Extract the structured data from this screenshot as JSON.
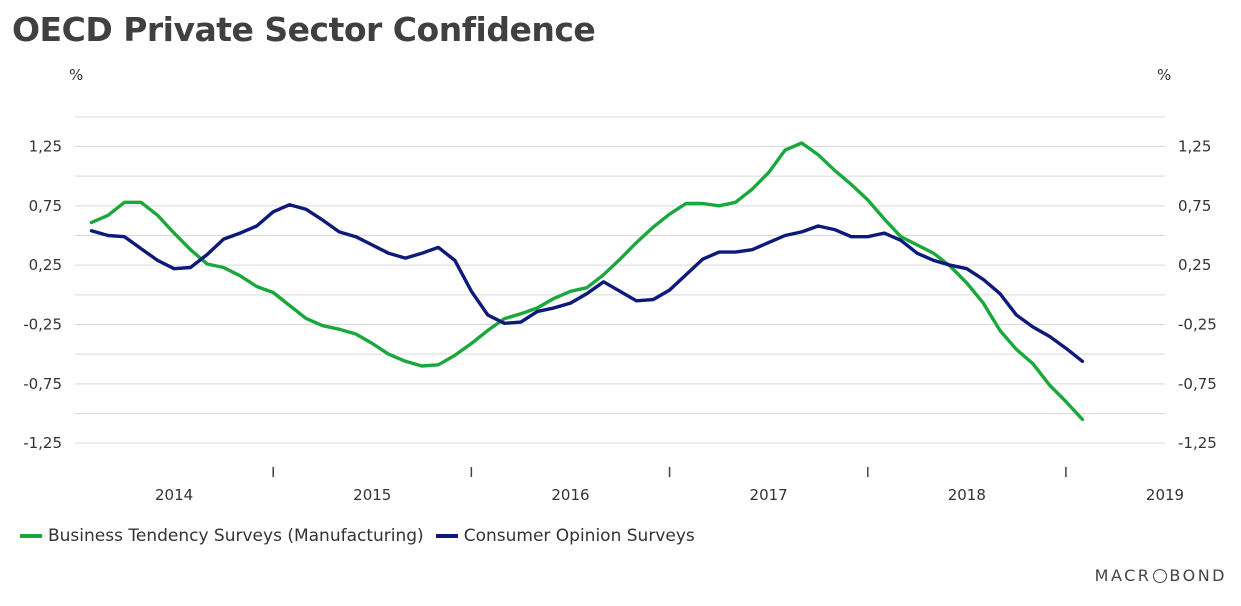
{
  "title": "OECD Private Sector Confidence",
  "brand": {
    "prefix": "MACR",
    "suffix": "BOND"
  },
  "colors": {
    "business": "#1aa83c",
    "consumer": "#0d1a7a",
    "grid": "#d9d9d9"
  },
  "chart_data": {
    "type": "line",
    "title": "OECD Private Sector Confidence",
    "ylabel_left": "%",
    "ylabel_right": "%",
    "ylim": [
      -1.35,
      1.6
    ],
    "yticks": [
      -1.25,
      -0.75,
      -0.25,
      0.25,
      0.75,
      1.25
    ],
    "ytick_labels": [
      "-1,25",
      "-0,75",
      "-0,25",
      "0,25",
      "0,75",
      "1,25"
    ],
    "x_range": [
      2013.5,
      2019.0
    ],
    "x_labels": [
      {
        "label": "2014",
        "x": 2014.0
      },
      {
        "label": "2015",
        "x": 2015.0
      },
      {
        "label": "2016",
        "x": 2016.0
      },
      {
        "label": "2017",
        "x": 2017.0
      },
      {
        "label": "2018",
        "x": 2018.0
      },
      {
        "label": "2019",
        "x": 2019.0
      }
    ],
    "x_year_separators": [
      2014.5,
      2015.5,
      2016.5,
      2017.5,
      2018.5
    ],
    "grid": true,
    "legend_position": "bottom-left",
    "series": [
      {
        "name": "Business Tendency Surveys (Manufacturing)",
        "color": "#1aa83c",
        "points": [
          [
            2013.583,
            0.61
          ],
          [
            2013.667,
            0.67
          ],
          [
            2013.75,
            0.78
          ],
          [
            2013.833,
            0.78
          ],
          [
            2013.917,
            0.67
          ],
          [
            2014.0,
            0.52
          ],
          [
            2014.083,
            0.38
          ],
          [
            2014.167,
            0.26
          ],
          [
            2014.25,
            0.23
          ],
          [
            2014.333,
            0.16
          ],
          [
            2014.417,
            0.07
          ],
          [
            2014.5,
            0.02
          ],
          [
            2014.583,
            -0.09
          ],
          [
            2014.667,
            -0.2
          ],
          [
            2014.75,
            -0.26
          ],
          [
            2014.833,
            -0.29
          ],
          [
            2014.917,
            -0.33
          ],
          [
            2015.0,
            -0.41
          ],
          [
            2015.083,
            -0.5
          ],
          [
            2015.167,
            -0.56
          ],
          [
            2015.25,
            -0.6
          ],
          [
            2015.333,
            -0.59
          ],
          [
            2015.417,
            -0.51
          ],
          [
            2015.5,
            -0.41
          ],
          [
            2015.583,
            -0.3
          ],
          [
            2015.667,
            -0.2
          ],
          [
            2015.75,
            -0.16
          ],
          [
            2015.833,
            -0.11
          ],
          [
            2015.917,
            -0.03
          ],
          [
            2016.0,
            0.03
          ],
          [
            2016.083,
            0.06
          ],
          [
            2016.167,
            0.17
          ],
          [
            2016.25,
            0.3
          ],
          [
            2016.333,
            0.44
          ],
          [
            2016.417,
            0.57
          ],
          [
            2016.5,
            0.68
          ],
          [
            2016.583,
            0.77
          ],
          [
            2016.667,
            0.77
          ],
          [
            2016.75,
            0.75
          ],
          [
            2016.833,
            0.78
          ],
          [
            2016.917,
            0.89
          ],
          [
            2017.0,
            1.03
          ],
          [
            2017.083,
            1.22
          ],
          [
            2017.167,
            1.28
          ],
          [
            2017.25,
            1.18
          ],
          [
            2017.333,
            1.05
          ],
          [
            2017.417,
            0.93
          ],
          [
            2017.5,
            0.8
          ],
          [
            2017.583,
            0.64
          ],
          [
            2017.667,
            0.49
          ],
          [
            2017.75,
            0.42
          ],
          [
            2017.833,
            0.35
          ],
          [
            2017.917,
            0.24
          ],
          [
            2018.0,
            0.1
          ],
          [
            2018.083,
            -0.07
          ],
          [
            2018.167,
            -0.3
          ],
          [
            2018.25,
            -0.46
          ],
          [
            2018.333,
            -0.58
          ],
          [
            2018.417,
            -0.76
          ],
          [
            2018.5,
            -0.9
          ],
          [
            2018.583,
            -1.05
          ]
        ]
      },
      {
        "name": "Consumer Opinion Surveys",
        "color": "#0d1a7a",
        "points": [
          [
            2013.583,
            0.54
          ],
          [
            2013.667,
            0.5
          ],
          [
            2013.75,
            0.49
          ],
          [
            2013.833,
            0.39
          ],
          [
            2013.917,
            0.29
          ],
          [
            2014.0,
            0.22
          ],
          [
            2014.083,
            0.23
          ],
          [
            2014.167,
            0.34
          ],
          [
            2014.25,
            0.47
          ],
          [
            2014.333,
            0.52
          ],
          [
            2014.417,
            0.58
          ],
          [
            2014.5,
            0.7
          ],
          [
            2014.583,
            0.76
          ],
          [
            2014.667,
            0.72
          ],
          [
            2014.75,
            0.63
          ],
          [
            2014.833,
            0.53
          ],
          [
            2014.917,
            0.49
          ],
          [
            2015.0,
            0.42
          ],
          [
            2015.083,
            0.35
          ],
          [
            2015.167,
            0.31
          ],
          [
            2015.25,
            0.35
          ],
          [
            2015.333,
            0.4
          ],
          [
            2015.417,
            0.29
          ],
          [
            2015.5,
            0.03
          ],
          [
            2015.583,
            -0.17
          ],
          [
            2015.667,
            -0.24
          ],
          [
            2015.75,
            -0.23
          ],
          [
            2015.833,
            -0.14
          ],
          [
            2015.917,
            -0.11
          ],
          [
            2016.0,
            -0.07
          ],
          [
            2016.083,
            0.01
          ],
          [
            2016.167,
            0.11
          ],
          [
            2016.25,
            0.03
          ],
          [
            2016.333,
            -0.05
          ],
          [
            2016.417,
            -0.04
          ],
          [
            2016.5,
            0.04
          ],
          [
            2016.583,
            0.17
          ],
          [
            2016.667,
            0.3
          ],
          [
            2016.75,
            0.36
          ],
          [
            2016.833,
            0.36
          ],
          [
            2016.917,
            0.38
          ],
          [
            2017.0,
            0.44
          ],
          [
            2017.083,
            0.5
          ],
          [
            2017.167,
            0.53
          ],
          [
            2017.25,
            0.58
          ],
          [
            2017.333,
            0.55
          ],
          [
            2017.417,
            0.49
          ],
          [
            2017.5,
            0.49
          ],
          [
            2017.583,
            0.52
          ],
          [
            2017.667,
            0.46
          ],
          [
            2017.75,
            0.35
          ],
          [
            2017.833,
            0.29
          ],
          [
            2017.917,
            0.25
          ],
          [
            2018.0,
            0.22
          ],
          [
            2018.083,
            0.13
          ],
          [
            2018.167,
            0.01
          ],
          [
            2018.25,
            -0.17
          ],
          [
            2018.333,
            -0.27
          ],
          [
            2018.417,
            -0.35
          ],
          [
            2018.5,
            -0.45
          ],
          [
            2018.583,
            -0.56
          ]
        ]
      }
    ]
  }
}
